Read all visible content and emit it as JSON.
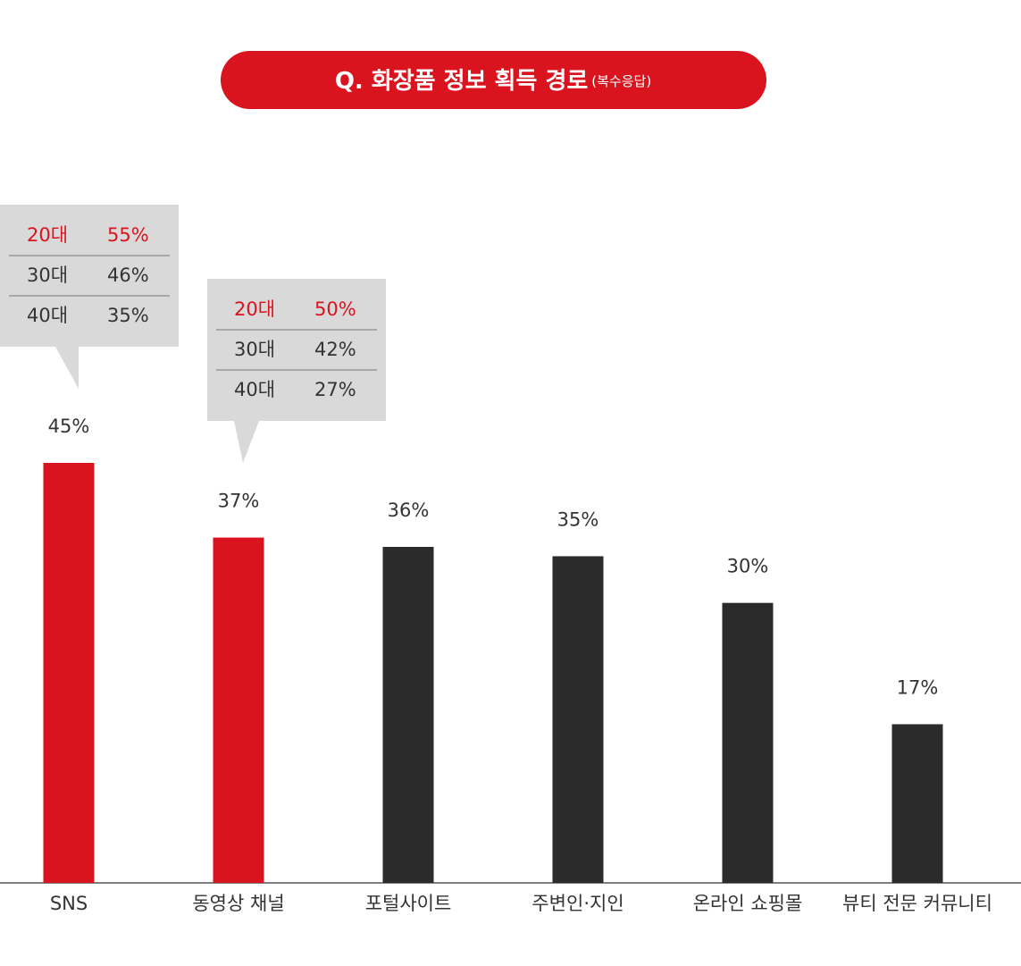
{
  "chart_data": {
    "type": "bar",
    "title": "Q. 화장품 정보 획득 경로",
    "subtitle": "(복수응답)",
    "categories": [
      "SNS",
      "동영상 채널",
      "포털사이트",
      "주변인·지인",
      "온라인 쇼핑몰",
      "뷰티 전문 커뮤니티"
    ],
    "values": [
      45,
      37,
      36,
      35,
      30,
      17
    ],
    "value_labels": [
      "45%",
      "37%",
      "36%",
      "35%",
      "30%",
      "17%"
    ],
    "colors": [
      "#d9141e",
      "#d9141e",
      "#2b2b2b",
      "#2b2b2b",
      "#2b2b2b",
      "#2b2b2b"
    ],
    "highlight_color": "#d9141e",
    "ylim": [
      0,
      45
    ],
    "breakdowns": [
      [
        {
          "group": "20대",
          "value": 55,
          "value_label": "55%"
        },
        {
          "group": "30대",
          "value": 46,
          "value_label": "46%"
        },
        {
          "group": "40대",
          "value": 35,
          "value_label": "35%"
        }
      ],
      [
        {
          "group": "20대",
          "value": 50,
          "value_label": "50%"
        },
        {
          "group": "30대",
          "value": 42,
          "value_label": "42%"
        },
        {
          "group": "40대",
          "value": 27,
          "value_label": "27%"
        }
      ],
      null,
      null,
      null,
      null
    ]
  }
}
